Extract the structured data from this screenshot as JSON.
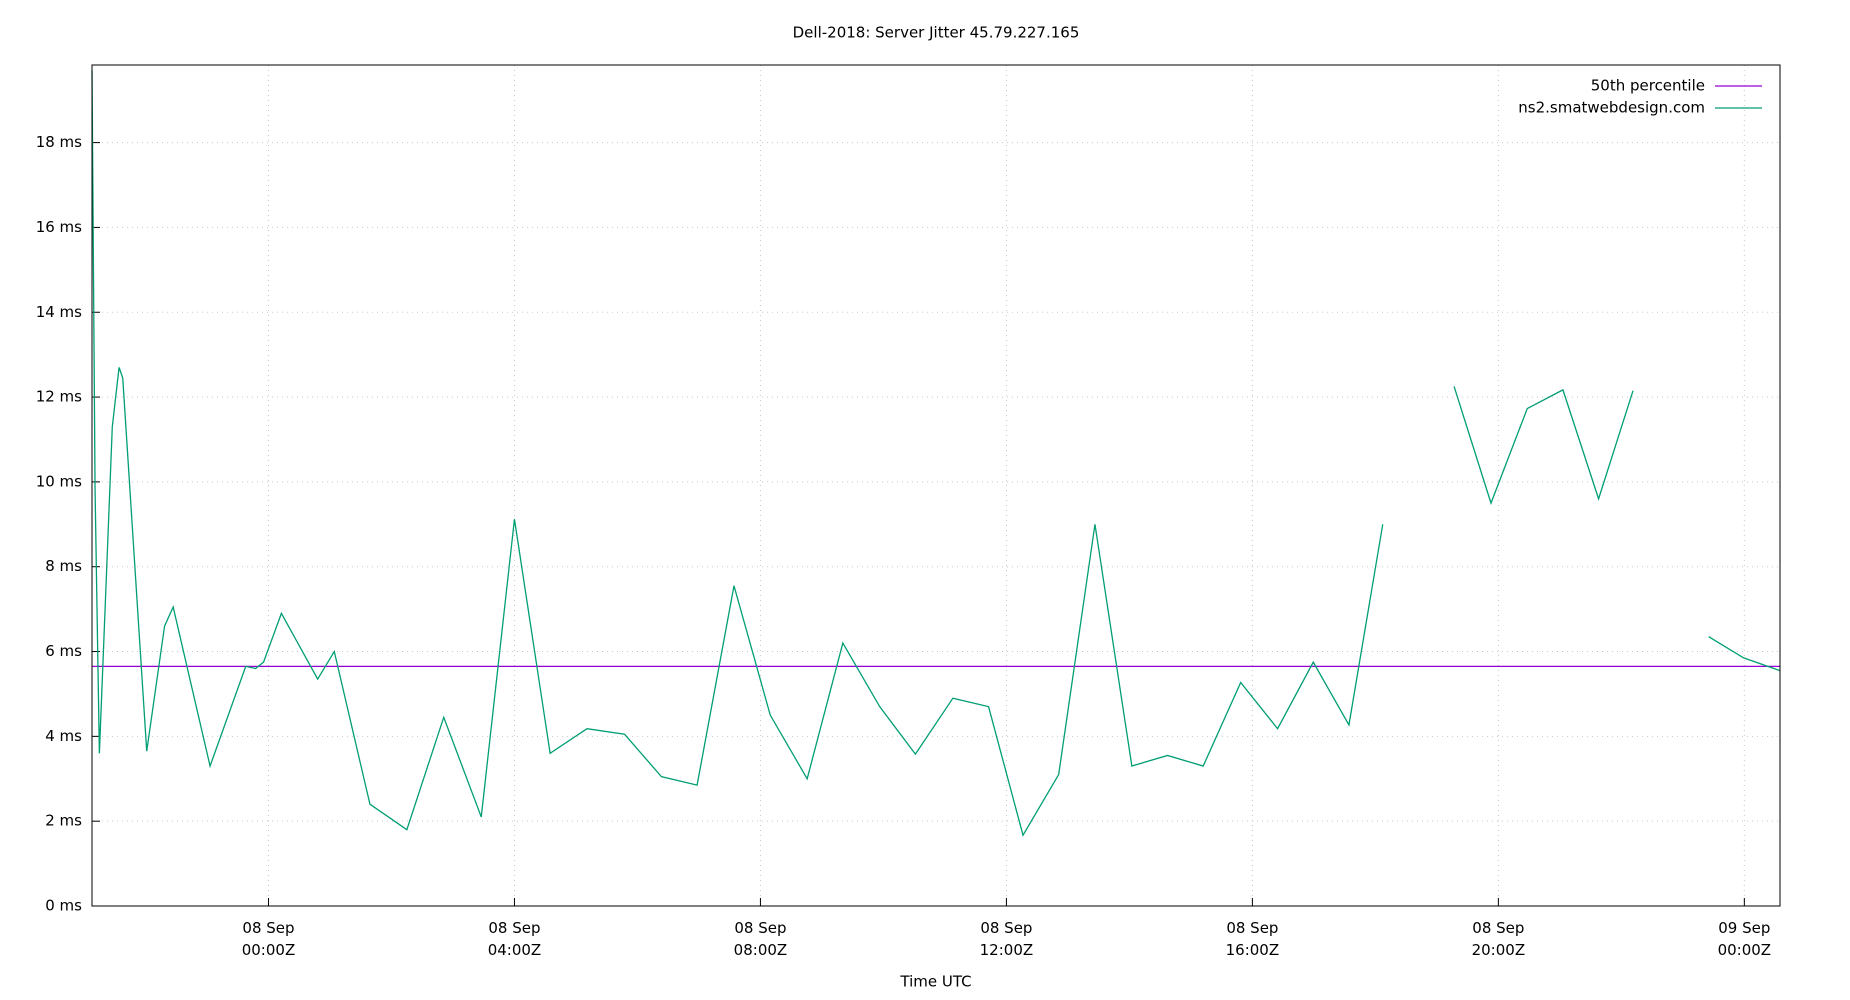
{
  "chart_data": {
    "type": "line",
    "title": "Dell-2018: Server Jitter 45.79.227.165",
    "x_label": "Time UTC",
    "xlim": [
      -2.87,
      24.58
    ],
    "ylim": [
      0,
      19.83
    ],
    "xticks": [
      {
        "value": 0,
        "label": "08 Sep 00:00Z"
      },
      {
        "value": 4,
        "label": "08 Sep 04:00Z"
      },
      {
        "value": 8,
        "label": "08 Sep 08:00Z"
      },
      {
        "value": 12,
        "label": "08 Sep 12:00Z"
      },
      {
        "value": 16,
        "label": "08 Sep 16:00Z"
      },
      {
        "value": 20,
        "label": "08 Sep 20:00Z"
      },
      {
        "value": 24,
        "label": "09 Sep 00:00Z"
      }
    ],
    "yticks": [
      {
        "value": 0,
        "label": "0 ms"
      },
      {
        "value": 2,
        "label": "2 ms"
      },
      {
        "value": 4,
        "label": "4 ms"
      },
      {
        "value": 6,
        "label": "6 ms"
      },
      {
        "value": 8,
        "label": "8 ms"
      },
      {
        "value": 10,
        "label": "10 ms"
      },
      {
        "value": 12,
        "label": "12 ms"
      },
      {
        "value": 14,
        "label": "14 ms"
      },
      {
        "value": 16,
        "label": "16 ms"
      },
      {
        "value": 18,
        "label": "18 ms"
      }
    ],
    "grid": true,
    "legend": "top-right",
    "series": [
      {
        "name": "50th percentile",
        "color": "#9400d3",
        "x": [
          -2.87,
          24.58
        ],
        "values": [
          5.65,
          5.65
        ]
      },
      {
        "name": "ns2.smatwebdesign.com",
        "color": "#009e73",
        "x": [
          -2.87,
          -2.82,
          -2.75,
          -2.54,
          -2.43,
          -2.37,
          -1.98,
          -1.69,
          -1.55,
          -0.95,
          -0.37,
          -0.21,
          -0.08,
          0.21,
          0.8,
          1.07,
          1.65,
          2.25,
          2.85,
          3.46,
          4.0,
          4.58,
          5.18,
          5.79,
          6.39,
          6.97,
          7.57,
          8.16,
          8.76,
          9.34,
          9.94,
          10.52,
          11.13,
          11.71,
          12.27,
          12.85,
          13.44,
          14.04,
          14.62,
          15.2,
          15.81,
          16.41,
          16.99,
          17.57,
          18.12,
          18.7,
          19.28,
          19.88,
          20.47,
          21.05,
          21.63,
          22.19,
          22.8,
          23.42,
          23.99,
          24.58
        ],
        "values": [
          19.7,
          9.8,
          3.6,
          11.3,
          12.7,
          12.45,
          3.65,
          6.6,
          7.05,
          3.3,
          5.65,
          5.6,
          5.75,
          6.9,
          5.35,
          6.0,
          2.4,
          1.8,
          4.45,
          2.1,
          9.12,
          3.6,
          4.18,
          4.05,
          3.05,
          2.85,
          7.55,
          4.5,
          3.0,
          6.2,
          4.7,
          3.58,
          4.9,
          4.7,
          1.67,
          3.1,
          9.0,
          3.3,
          3.55,
          3.3,
          5.27,
          4.18,
          5.75,
          4.27,
          9.0,
          null,
          12.25,
          9.5,
          11.73,
          12.17,
          9.6,
          12.15,
          null,
          6.35,
          5.85,
          5.55
        ]
      }
    ]
  }
}
